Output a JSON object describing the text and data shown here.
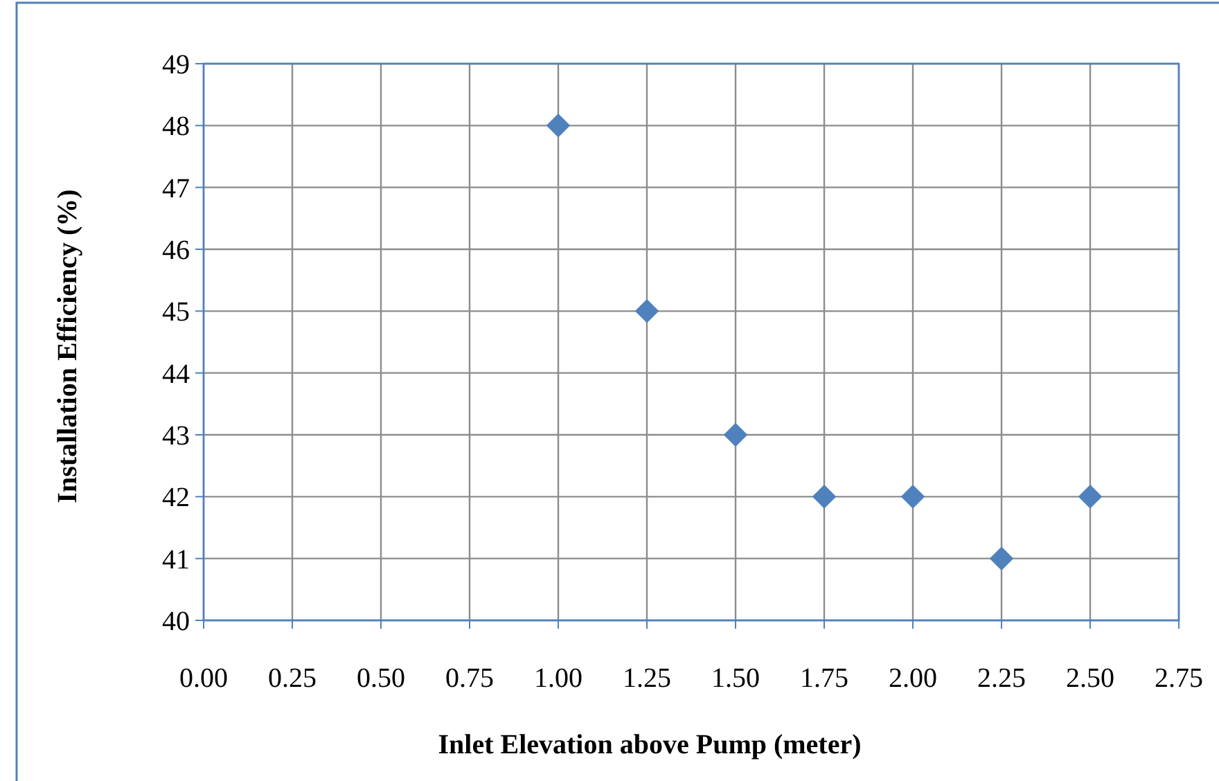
{
  "chart_data": {
    "type": "scatter",
    "xlabel": "Inlet Elevation above Pump (meter)",
    "ylabel": "Installation Efficiency (%)",
    "x": [
      1.0,
      1.25,
      1.5,
      1.75,
      2.0,
      2.25,
      2.5
    ],
    "series": [
      {
        "color": "#4f81bd",
        "values": [
          48,
          45,
          43,
          42,
          42,
          41,
          42
        ]
      }
    ],
    "xlim": [
      0,
      2.75
    ],
    "ylim": [
      40,
      49
    ],
    "xticks": [
      {
        "value": 0,
        "label": "0.00"
      },
      {
        "value": 0.25,
        "label": "0.25"
      },
      {
        "value": 0.5,
        "label": "0.50"
      },
      {
        "value": 0.75,
        "label": "0.75"
      },
      {
        "value": 1,
        "label": "1.00"
      },
      {
        "value": 1.25,
        "label": "1.25"
      },
      {
        "value": 1.5,
        "label": "1.50"
      },
      {
        "value": 1.75,
        "label": "1.75"
      },
      {
        "value": 2,
        "label": "2.00"
      },
      {
        "value": 2.25,
        "label": "2.25"
      },
      {
        "value": 2.5,
        "label": "2.50"
      },
      {
        "value": 2.75,
        "label": "2.75"
      }
    ],
    "yticks": [
      40,
      41,
      42,
      43,
      44,
      45,
      46,
      47,
      48,
      49
    ],
    "grid": true,
    "marker": "diamond"
  }
}
